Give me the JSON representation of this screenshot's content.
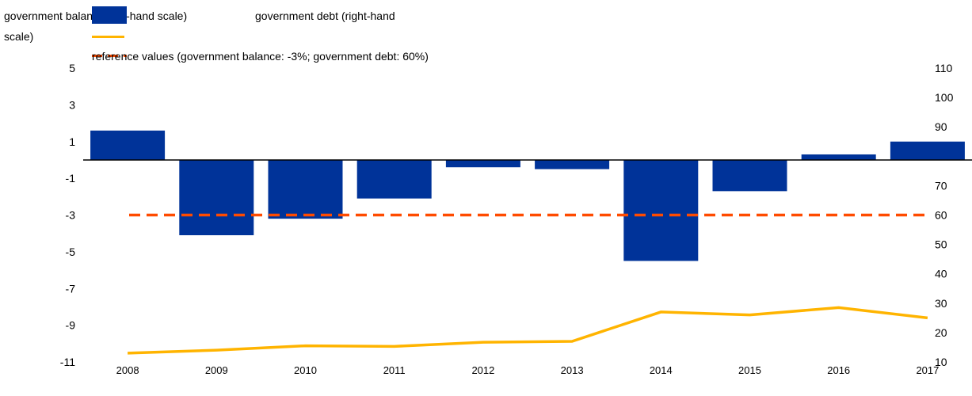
{
  "chart_data": {
    "type": "bar",
    "categories": [
      "2008",
      "2009",
      "2010",
      "2011",
      "2012",
      "2013",
      "2014",
      "2015",
      "2016",
      "2017"
    ],
    "series": [
      {
        "name": "government balance (left-hand scale)",
        "kind": "bar",
        "axis": "left",
        "color": "#003399",
        "values": [
          1.6,
          -4.1,
          -3.2,
          -2.1,
          -0.4,
          -0.5,
          -5.5,
          -1.7,
          0.3,
          1.0
        ]
      },
      {
        "name": "government debt (right-hand scale)",
        "kind": "line",
        "axis": "right",
        "color": "#FFB400",
        "values": [
          13,
          14,
          15.5,
          15.3,
          16.7,
          17,
          27,
          26,
          28.5,
          25
        ]
      },
      {
        "name": "reference values (government balance: -3%; government debt: 60%)",
        "kind": "reference-line",
        "axis": "left",
        "color": "#FF4B00",
        "value": -3
      }
    ],
    "y_left": {
      "ylim": [
        -11,
        5
      ],
      "ticks": [
        "5",
        "3",
        "1",
        "-1",
        "-3",
        "-5",
        "-7",
        "-9",
        "-11"
      ]
    },
    "y_right": {
      "ylim": [
        10,
        110
      ],
      "ticks": [
        "110",
        "100",
        "90",
        "70",
        "60",
        "50",
        "40",
        "30",
        "20",
        "10"
      ]
    },
    "legend": {
      "placement": "top-left",
      "label_balance": "government balance (left-hand scale)",
      "label_debt_line1": "government debt (right-hand",
      "label_debt_line2": "scale)",
      "label_reference": "reference values (government balance: -3%; government debt: 60%)"
    }
  }
}
